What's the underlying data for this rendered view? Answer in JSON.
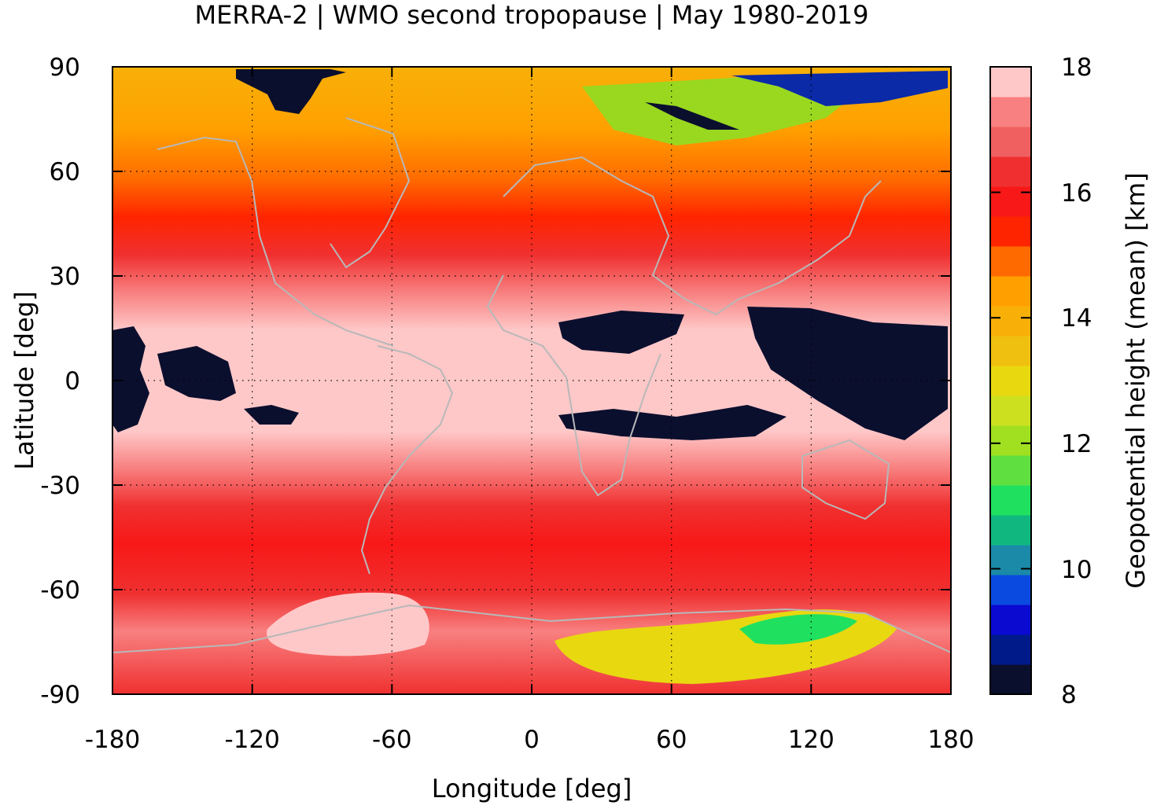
{
  "title": "MERRA-2 | WMO second tropopause | May 1980-2019",
  "x_axis": {
    "label": "Longitude [deg]",
    "min": -180,
    "max": 180,
    "ticks": [
      "-180",
      "-120",
      "-60",
      "0",
      "60",
      "120",
      "180"
    ],
    "tick_values": [
      -180,
      -120,
      -60,
      0,
      60,
      120,
      180
    ]
  },
  "y_axis": {
    "label": "Latitude [deg]",
    "min": -90,
    "max": 90,
    "ticks": [
      "90",
      "60",
      "30",
      "0",
      "-30",
      "-60",
      "-90"
    ],
    "tick_values": [
      90,
      60,
      30,
      0,
      -30,
      -60,
      -90
    ]
  },
  "colorbar": {
    "label": "Geopotential height (mean) [km]",
    "min": 8,
    "max": 18,
    "ticks": [
      "18",
      "16",
      "14",
      "12",
      "10",
      "8"
    ],
    "tick_values": [
      18,
      16,
      14,
      12,
      10,
      8
    ],
    "colors": [
      "#0b0f2e",
      "#001a8a",
      "#0a0ad0",
      "#0a4ae0",
      "#1a8aa8",
      "#10b880",
      "#20e060",
      "#60e040",
      "#a0e020",
      "#cce020",
      "#e8d810",
      "#f0c010",
      "#f8b008",
      "#ffa000",
      "#ff6a00",
      "#ff2400",
      "#f81818",
      "#f03030",
      "#f06060",
      "#f88080",
      "#ffc8c8"
    ]
  },
  "chart_data": {
    "type": "heatmap",
    "title": "MERRA-2 | WMO second tropopause | May 1980-2019",
    "xlabel": "Longitude [deg]",
    "ylabel": "Latitude [deg]",
    "xlim": [
      -180,
      180
    ],
    "ylim": [
      -90,
      90
    ],
    "colorbar_label": "Geopotential height (mean) [km]",
    "clim": [
      8,
      18
    ],
    "grid": true,
    "overlay": "coastlines",
    "zonal_mean_profile_km": [
      {
        "lat": 90,
        "value": 13.0
      },
      {
        "lat": 80,
        "value": 14.5
      },
      {
        "lat": 70,
        "value": 14.8
      },
      {
        "lat": 60,
        "value": 15.0
      },
      {
        "lat": 50,
        "value": 16.0
      },
      {
        "lat": 40,
        "value": 16.5
      },
      {
        "lat": 30,
        "value": 17.0
      },
      {
        "lat": 20,
        "value": 17.8
      },
      {
        "lat": 10,
        "value": 17.8
      },
      {
        "lat": 0,
        "value": 17.9
      },
      {
        "lat": -10,
        "value": 17.8
      },
      {
        "lat": -20,
        "value": 17.3
      },
      {
        "lat": -30,
        "value": 16.6
      },
      {
        "lat": -40,
        "value": 16.3
      },
      {
        "lat": -50,
        "value": 16.3
      },
      {
        "lat": -60,
        "value": 16.8
      },
      {
        "lat": -70,
        "value": 17.3
      },
      {
        "lat": -80,
        "value": 16.0
      },
      {
        "lat": -90,
        "value": 16.5
      }
    ]
  }
}
